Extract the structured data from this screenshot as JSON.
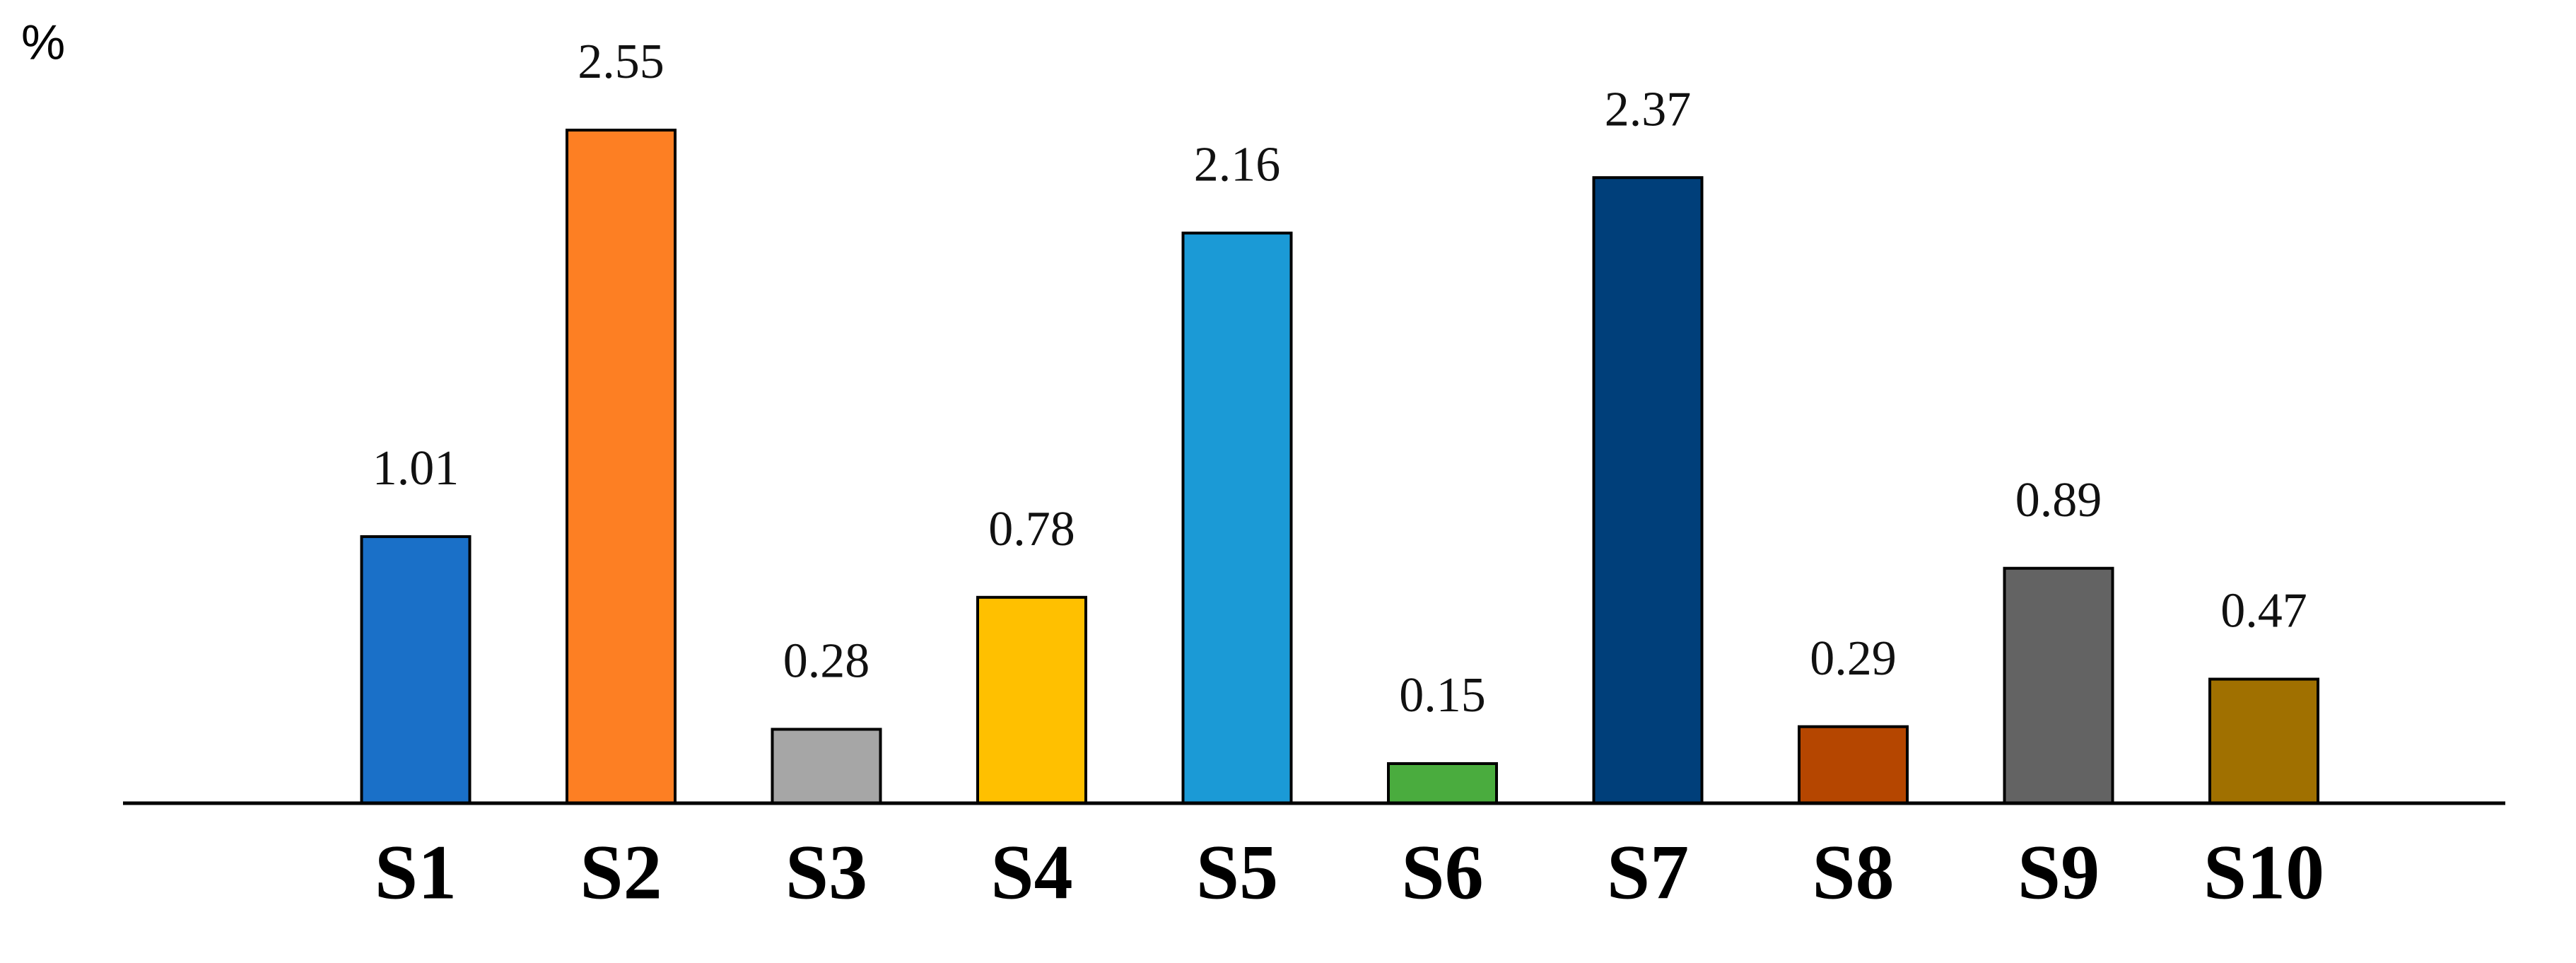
{
  "chart_data": {
    "type": "bar",
    "ylabel": "%",
    "categories": [
      "S1",
      "S2",
      "S3",
      "S4",
      "S5",
      "S6",
      "S7",
      "S8",
      "S9",
      "S10"
    ],
    "values": [
      1.01,
      2.55,
      0.28,
      0.78,
      2.16,
      0.15,
      2.37,
      0.29,
      0.89,
      0.47
    ],
    "colors": [
      "#1a70c8",
      "#fd7f23",
      "#a6a6a6",
      "#ffc000",
      "#1b9ad6",
      "#4aac3e",
      "#003f7a",
      "#b54600",
      "#636363",
      "#a07000"
    ],
    "ylim": [
      0,
      3
    ],
    "grid": false
  }
}
